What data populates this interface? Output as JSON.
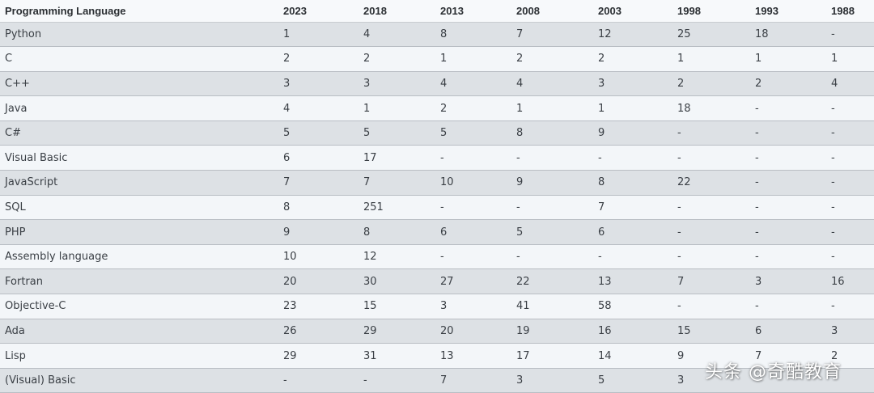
{
  "table": {
    "header": {
      "language": "Programming Language",
      "years": [
        "2023",
        "2018",
        "2013",
        "2008",
        "2003",
        "1998",
        "1993",
        "1988"
      ]
    },
    "rows": [
      {
        "language": "Python",
        "ranks": [
          "1",
          "4",
          "8",
          "7",
          "12",
          "25",
          "18",
          "-"
        ]
      },
      {
        "language": "C",
        "ranks": [
          "2",
          "2",
          "1",
          "2",
          "2",
          "1",
          "1",
          "1"
        ]
      },
      {
        "language": "C++",
        "ranks": [
          "3",
          "3",
          "4",
          "4",
          "3",
          "2",
          "2",
          "4"
        ]
      },
      {
        "language": "Java",
        "ranks": [
          "4",
          "1",
          "2",
          "1",
          "1",
          "18",
          "-",
          "-"
        ]
      },
      {
        "language": "C#",
        "ranks": [
          "5",
          "5",
          "5",
          "8",
          "9",
          "-",
          "-",
          "-"
        ]
      },
      {
        "language": "Visual Basic",
        "ranks": [
          "6",
          "17",
          "-",
          "-",
          "-",
          "-",
          "-",
          "-"
        ]
      },
      {
        "language": "JavaScript",
        "ranks": [
          "7",
          "7",
          "10",
          "9",
          "8",
          "22",
          "-",
          "-"
        ]
      },
      {
        "language": "SQL",
        "ranks": [
          "8",
          "251",
          "-",
          "-",
          "7",
          "-",
          "-",
          "-"
        ]
      },
      {
        "language": "PHP",
        "ranks": [
          "9",
          "8",
          "6",
          "5",
          "6",
          "-",
          "-",
          "-"
        ]
      },
      {
        "language": "Assembly language",
        "ranks": [
          "10",
          "12",
          "-",
          "-",
          "-",
          "-",
          "-",
          "-"
        ]
      },
      {
        "language": "Fortran",
        "ranks": [
          "20",
          "30",
          "27",
          "22",
          "13",
          "7",
          "3",
          "16"
        ]
      },
      {
        "language": "Objective-C",
        "ranks": [
          "23",
          "15",
          "3",
          "41",
          "58",
          "-",
          "-",
          "-"
        ]
      },
      {
        "language": "Ada",
        "ranks": [
          "26",
          "29",
          "20",
          "19",
          "16",
          "15",
          "6",
          "3"
        ]
      },
      {
        "language": "Lisp",
        "ranks": [
          "29",
          "31",
          "13",
          "17",
          "14",
          "9",
          "7",
          "2"
        ]
      },
      {
        "language": "(Visual) Basic",
        "ranks": [
          "-",
          "-",
          "7",
          "3",
          "5",
          "3",
          "",
          ""
        ]
      }
    ]
  },
  "watermark": "头条 @奇酷教育",
  "colors": {
    "row_odd": "#dde1e5",
    "row_even": "#f3f6f9",
    "text": "#3a3f45",
    "header_text": "#2b2f33"
  }
}
